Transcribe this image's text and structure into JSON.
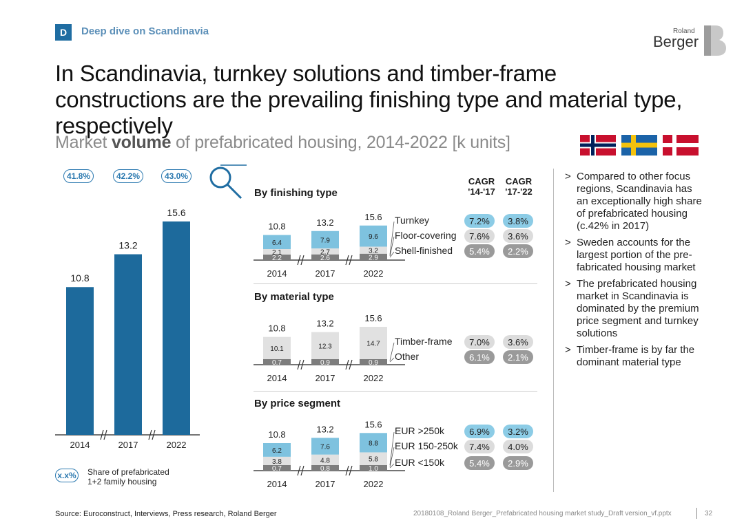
{
  "header": {
    "section_badge": "D",
    "section_label": "Deep dive on Scandinavia",
    "title": "In Scandinavia, turnkey solutions and timber-frame constructions are the prevailing finishing type and material type, respectively",
    "subtitle_prefix": "Market ",
    "subtitle_bold": "volume",
    "subtitle_suffix": " of prefabricated housing, 2014-2022 [k units]",
    "logo_small": "Roland",
    "logo_large": "Berger"
  },
  "colors": {
    "accent": "#1f6da2",
    "bar_main": "#1d6a9c",
    "bar_light": "#7ec2df",
    "bar_grey": "#e1e1e1",
    "bar_dark": "#7d7d7d",
    "pill_blue": "#8ccce6",
    "pill_grey": "#dcdcdc",
    "pill_dark": "#9a9a9a"
  },
  "share_pills": [
    "41.8%",
    "42.2%",
    "43.0%"
  ],
  "legend": {
    "pill": "x.x%",
    "text_line1": "Share of prefabricated",
    "text_line2": "1+2 family housing"
  },
  "chart_data": [
    {
      "type": "bar",
      "categories": [
        "2014",
        "2017",
        "2022"
      ],
      "values": [
        10.8,
        13.2,
        15.6
      ],
      "title": "",
      "ylim": [
        0,
        15.6
      ]
    },
    {
      "type": "bar",
      "stacked": true,
      "title": "By finishing type",
      "categories": [
        "2014",
        "2017",
        "2022"
      ],
      "totals": [
        "10.8",
        "13.2",
        "15.6"
      ],
      "series": [
        {
          "name": "Shell-finished",
          "values": [
            2.2,
            2.6,
            2.9
          ],
          "labels": [
            "2.2",
            "2.6",
            "2.9"
          ],
          "cagr_14_17": "5.4%",
          "cagr_17_22": "2.2%"
        },
        {
          "name": "Floor-covering",
          "values": [
            2.1,
            2.7,
            3.2
          ],
          "labels": [
            "2.1",
            "2.7",
            "3.2"
          ],
          "cagr_14_17": "7.6%",
          "cagr_17_22": "3.6%"
        },
        {
          "name": "Turnkey",
          "values": [
            6.4,
            7.9,
            9.6
          ],
          "labels": [
            "6.4",
            "7.9",
            "9.6"
          ],
          "cagr_14_17": "7.2%",
          "cagr_17_22": "3.8%"
        }
      ]
    },
    {
      "type": "bar",
      "stacked": true,
      "title": "By material type",
      "categories": [
        "2014",
        "2017",
        "2022"
      ],
      "totals": [
        "10.8",
        "13.2",
        "15.6"
      ],
      "series": [
        {
          "name": "Other",
          "values": [
            0.7,
            0.9,
            0.9
          ],
          "labels": [
            "0.7",
            "0.9",
            "0.9"
          ],
          "cagr_14_17": "6.1%",
          "cagr_17_22": "2.1%"
        },
        {
          "name": "Timber-frame",
          "values": [
            10.1,
            12.3,
            14.7
          ],
          "labels": [
            "10.1",
            "12.3",
            "14.7"
          ],
          "cagr_14_17": "7.0%",
          "cagr_17_22": "3.6%"
        }
      ]
    },
    {
      "type": "bar",
      "stacked": true,
      "title": "By price segment",
      "categories": [
        "2014",
        "2017",
        "2022"
      ],
      "totals": [
        "10.8",
        "13.2",
        "15.6"
      ],
      "series": [
        {
          "name": "EUR <150k",
          "values": [
            0.7,
            0.8,
            1.0
          ],
          "labels": [
            "0.7",
            "0.8",
            "1.0"
          ],
          "cagr_14_17": "5.4%",
          "cagr_17_22": "2.9%"
        },
        {
          "name": "EUR 150-250k",
          "values": [
            3.8,
            4.8,
            5.8
          ],
          "labels": [
            "3.8",
            "4.8",
            "5.8"
          ],
          "cagr_14_17": "7.4%",
          "cagr_17_22": "4.0%"
        },
        {
          "name": "EUR >250k",
          "values": [
            6.2,
            7.6,
            8.8
          ],
          "labels": [
            "6.2",
            "7.6",
            "8.8"
          ],
          "cagr_14_17": "6.9%",
          "cagr_17_22": "3.2%"
        }
      ]
    }
  ],
  "cagr_headers": {
    "h1_line1": "CAGR",
    "h1_line2": "'14-'17",
    "h2_line1": "CAGR",
    "h2_line2": "'17-'22"
  },
  "bullets": [
    "Compared to other focus regions, Scandinavia has an exceptionally high share of prefabricated housing (c.42% in 2017)",
    "Sweden accounts for the largest portion of the pre-fabricated housing market",
    "The prefabricated housing market in Scandinavia is dominated by the premium price segment and turnkey solutions",
    "Timber-frame is by far the dominant material type"
  ],
  "footer": {
    "source": "Source: Euroconstruct, Interviews, Press research, Roland Berger",
    "file": "20180108_Roland Berger_Prefabricated housing market study_Draft version_vf.pptx",
    "page": "32"
  }
}
